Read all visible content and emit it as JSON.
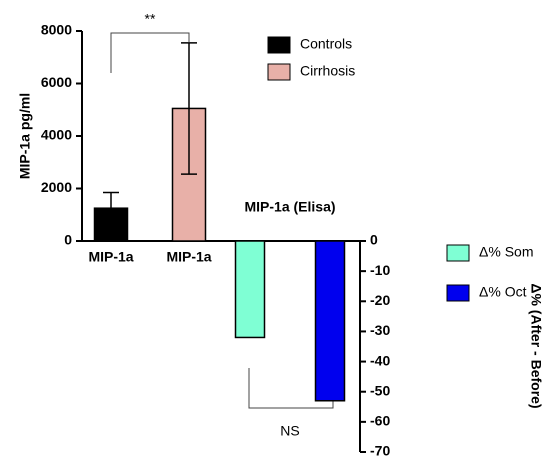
{
  "chart_data": [
    {
      "type": "bar",
      "ylabel": "MIP-1a pg/ml",
      "categories": [
        "MIP-1a",
        "MIP-1a"
      ],
      "series": [
        {
          "name": "Controls",
          "color": "#000000",
          "values": [
            1250,
            null
          ],
          "errors": [
            600,
            null
          ]
        },
        {
          "name": "Cirrhosis",
          "color": "#e8b0a8",
          "values": [
            null,
            5050
          ],
          "errors": [
            null,
            2500
          ]
        }
      ],
      "ylim": [
        0,
        8000
      ],
      "yticks": [
        0,
        2000,
        4000,
        6000,
        8000
      ],
      "annotation": "**"
    },
    {
      "type": "bar",
      "title": "MIP-1a (Elisa)",
      "ylabel": "Δ% (After - Before)",
      "series": [
        {
          "name": "Δ% Som",
          "color": "#7fffd4",
          "values": [
            -32
          ]
        },
        {
          "name": "Δ% Oct",
          "color": "#0000ee",
          "values": [
            -53
          ]
        }
      ],
      "ylim": [
        -70,
        0
      ],
      "yticks": [
        0,
        -10,
        -20,
        -30,
        -40,
        -50,
        -60,
        -70
      ],
      "annotation": "NS"
    }
  ]
}
